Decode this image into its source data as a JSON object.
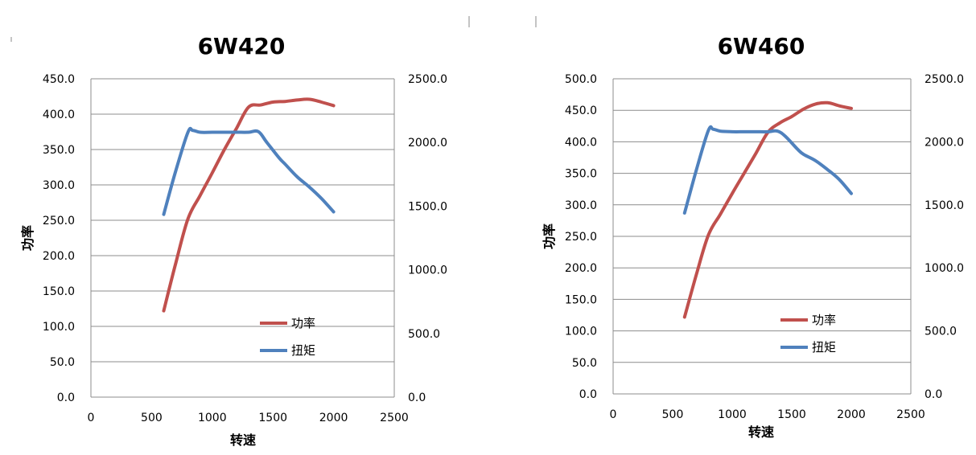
{
  "chart_data": [
    {
      "type": "line",
      "title": "6W420",
      "xlabel": "转速",
      "ylabel": "功率",
      "xlim": [
        0,
        2500
      ],
      "x_ticks": [
        "0",
        "500",
        "1000",
        "1500",
        "2000",
        "2500"
      ],
      "ylim": [
        0,
        450
      ],
      "y_ticks": [
        "0.0",
        "50.0",
        "100.0",
        "150.0",
        "200.0",
        "250.0",
        "300.0",
        "350.0",
        "400.0",
        "450.0"
      ],
      "y2lim": [
        0,
        2500
      ],
      "y2_ticks": [
        "0.0",
        "500.0",
        "1000.0",
        "1500.0",
        "2000.0",
        "2500.0"
      ],
      "grid": true,
      "legend_position": "lower-right inside plot",
      "series": [
        {
          "name": "功率",
          "axis": "left",
          "color": "#c0504d",
          "x": [
            600,
            700,
            800,
            900,
            1000,
            1100,
            1200,
            1300,
            1400,
            1500,
            1600,
            1700,
            1800,
            1900,
            2000
          ],
          "y": [
            122,
            190,
            252,
            285,
            317,
            350,
            380,
            410,
            413,
            417,
            418,
            420,
            421,
            417,
            412
          ]
        },
        {
          "name": "扭矩",
          "axis": "right",
          "color": "#4f81bd",
          "x": [
            600,
            700,
            800,
            840,
            900,
            1000,
            1100,
            1200,
            1300,
            1380,
            1450,
            1550,
            1600,
            1700,
            1800,
            1900,
            2000
          ],
          "y": [
            1435,
            1780,
            2080,
            2095,
            2080,
            2080,
            2080,
            2080,
            2080,
            2085,
            2000,
            1880,
            1830,
            1730,
            1650,
            1560,
            1455
          ]
        }
      ]
    },
    {
      "type": "line",
      "title": "6W460",
      "xlabel": "转速",
      "ylabel": "功率",
      "xlim": [
        0,
        2500
      ],
      "x_ticks": [
        "0",
        "500",
        "1000",
        "1500",
        "2000",
        "2500"
      ],
      "ylim": [
        0,
        500
      ],
      "y_ticks": [
        "0.0",
        "50.0",
        "100.0",
        "150.0",
        "200.0",
        "250.0",
        "300.0",
        "350.0",
        "400.0",
        "450.0",
        "500.0"
      ],
      "y2lim": [
        0,
        2500
      ],
      "y2_ticks": [
        "0.0",
        "500.0",
        "1000.0",
        "1500.0",
        "2000.0",
        "2500.0"
      ],
      "grid": true,
      "legend_position": "lower-right inside plot",
      "series": [
        {
          "name": "功率",
          "axis": "left",
          "color": "#c0504d",
          "x": [
            600,
            700,
            800,
            900,
            1000,
            1100,
            1200,
            1300,
            1400,
            1500,
            1600,
            1700,
            1800,
            1900,
            2000
          ],
          "y": [
            122,
            190,
            252,
            285,
            318,
            350,
            382,
            415,
            430,
            440,
            452,
            460,
            462,
            457,
            453
          ]
        },
        {
          "name": "扭矩",
          "axis": "right",
          "color": "#4f81bd",
          "x": [
            600,
            700,
            800,
            840,
            900,
            1000,
            1100,
            1200,
            1300,
            1380,
            1450,
            1550,
            1600,
            1700,
            1800,
            1900,
            2000
          ],
          "y": [
            1435,
            1780,
            2090,
            2100,
            2085,
            2080,
            2080,
            2080,
            2080,
            2085,
            2040,
            1940,
            1900,
            1850,
            1780,
            1700,
            1590
          ]
        }
      ]
    }
  ]
}
